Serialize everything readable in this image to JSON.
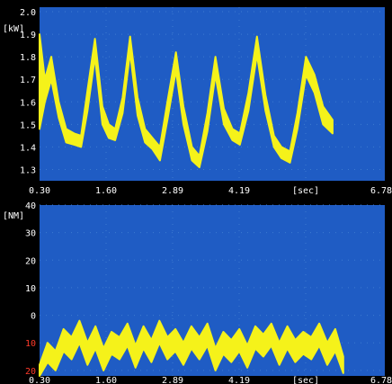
{
  "chart_data": [
    {
      "type": "area",
      "title": "",
      "unit_label": "[kW]",
      "x_unit_label": "[sec]",
      "xlim": [
        0.3,
        6.78
      ],
      "ylim": [
        1.25,
        2.02
      ],
      "x_ticks": [
        "0.30",
        "1.60",
        "2.89",
        "4.19",
        "[sec]",
        "6.78"
      ],
      "y_ticks": [
        {
          "value": 2.0,
          "label": "2.0"
        },
        {
          "value": 1.9,
          "label": "1.9"
        },
        {
          "value": 1.8,
          "label": "1.8"
        },
        {
          "value": 1.7,
          "label": "1.7"
        },
        {
          "value": 1.6,
          "label": "1.6"
        },
        {
          "value": 1.5,
          "label": "1.5"
        },
        {
          "value": 1.4,
          "label": "1.4"
        },
        {
          "value": 1.3,
          "label": "1.3"
        }
      ],
      "series": [
        {
          "color": "#f5f21a",
          "x": [
            0.3,
            0.4,
            0.52,
            0.66,
            0.8,
            0.95,
            1.08,
            1.2,
            1.34,
            1.48,
            1.6,
            1.72,
            1.86,
            2.0,
            2.14,
            2.28,
            2.42,
            2.56,
            2.7,
            2.86,
            3.0,
            3.16,
            3.3,
            3.45,
            3.6,
            3.76,
            3.92,
            4.06,
            4.22,
            4.38,
            4.54,
            4.7,
            4.84,
            5.0,
            5.14,
            5.3,
            5.46,
            5.62,
            5.8
          ],
          "upper": [
            1.9,
            1.7,
            1.8,
            1.6,
            1.48,
            1.46,
            1.45,
            1.65,
            1.88,
            1.58,
            1.5,
            1.48,
            1.62,
            1.89,
            1.62,
            1.48,
            1.44,
            1.4,
            1.6,
            1.82,
            1.58,
            1.4,
            1.36,
            1.55,
            1.8,
            1.57,
            1.48,
            1.46,
            1.64,
            1.89,
            1.63,
            1.45,
            1.4,
            1.38,
            1.55,
            1.8,
            1.72,
            1.58,
            1.52
          ],
          "lower": [
            1.48,
            1.6,
            1.7,
            1.53,
            1.42,
            1.41,
            1.4,
            1.56,
            1.8,
            1.5,
            1.44,
            1.43,
            1.55,
            1.82,
            1.54,
            1.42,
            1.39,
            1.34,
            1.52,
            1.74,
            1.5,
            1.34,
            1.31,
            1.47,
            1.72,
            1.5,
            1.43,
            1.41,
            1.56,
            1.81,
            1.56,
            1.4,
            1.35,
            1.33,
            1.48,
            1.72,
            1.64,
            1.5,
            1.46
          ]
        }
      ]
    },
    {
      "type": "area",
      "title": "",
      "unit_label": "[NM]",
      "x_unit_label": "[sec]",
      "xlim": [
        0.3,
        6.78
      ],
      "ylim": [
        -22,
        40
      ],
      "x_ticks": [
        "0.30",
        "1.60",
        "2.89",
        "4.19",
        "[sec]",
        "6.78"
      ],
      "y_ticks": [
        {
          "value": 40,
          "label": "40"
        },
        {
          "value": 30,
          "label": "30"
        },
        {
          "value": 20,
          "label": "20"
        },
        {
          "value": 10,
          "label": "10"
        },
        {
          "value": 0,
          "label": "0"
        },
        {
          "value": -10,
          "label": "10"
        },
        {
          "value": -20,
          "label": "20"
        }
      ],
      "series": [
        {
          "color": "#f5f21a",
          "x": [
            0.3,
            0.45,
            0.6,
            0.75,
            0.9,
            1.05,
            1.2,
            1.35,
            1.5,
            1.65,
            1.8,
            1.95,
            2.1,
            2.25,
            2.4,
            2.55,
            2.7,
            2.85,
            3.0,
            3.15,
            3.3,
            3.45,
            3.6,
            3.75,
            3.9,
            4.05,
            4.2,
            4.35,
            4.5,
            4.65,
            4.8,
            4.95,
            5.1,
            5.25,
            5.4,
            5.55,
            5.7,
            5.85,
            6.0
          ],
          "upper": [
            -18,
            -10,
            -13,
            -5,
            -8,
            -2,
            -10,
            -4,
            -12,
            -6,
            -8,
            -3,
            -11,
            -4,
            -9,
            -2,
            -8,
            -5,
            -10,
            -4,
            -8,
            -3,
            -12,
            -6,
            -9,
            -5,
            -11,
            -4,
            -7,
            -3,
            -10,
            -4,
            -9,
            -6,
            -8,
            -3,
            -10,
            -5,
            -15
          ],
          "lower": [
            -22,
            -17,
            -20,
            -13,
            -16,
            -10,
            -18,
            -12,
            -20,
            -14,
            -16,
            -11,
            -19,
            -12,
            -17,
            -10,
            -16,
            -13,
            -18,
            -12,
            -16,
            -11,
            -20,
            -14,
            -17,
            -13,
            -19,
            -12,
            -15,
            -11,
            -18,
            -12,
            -17,
            -14,
            -16,
            -11,
            -18,
            -13,
            -21
          ]
        }
      ]
    }
  ]
}
